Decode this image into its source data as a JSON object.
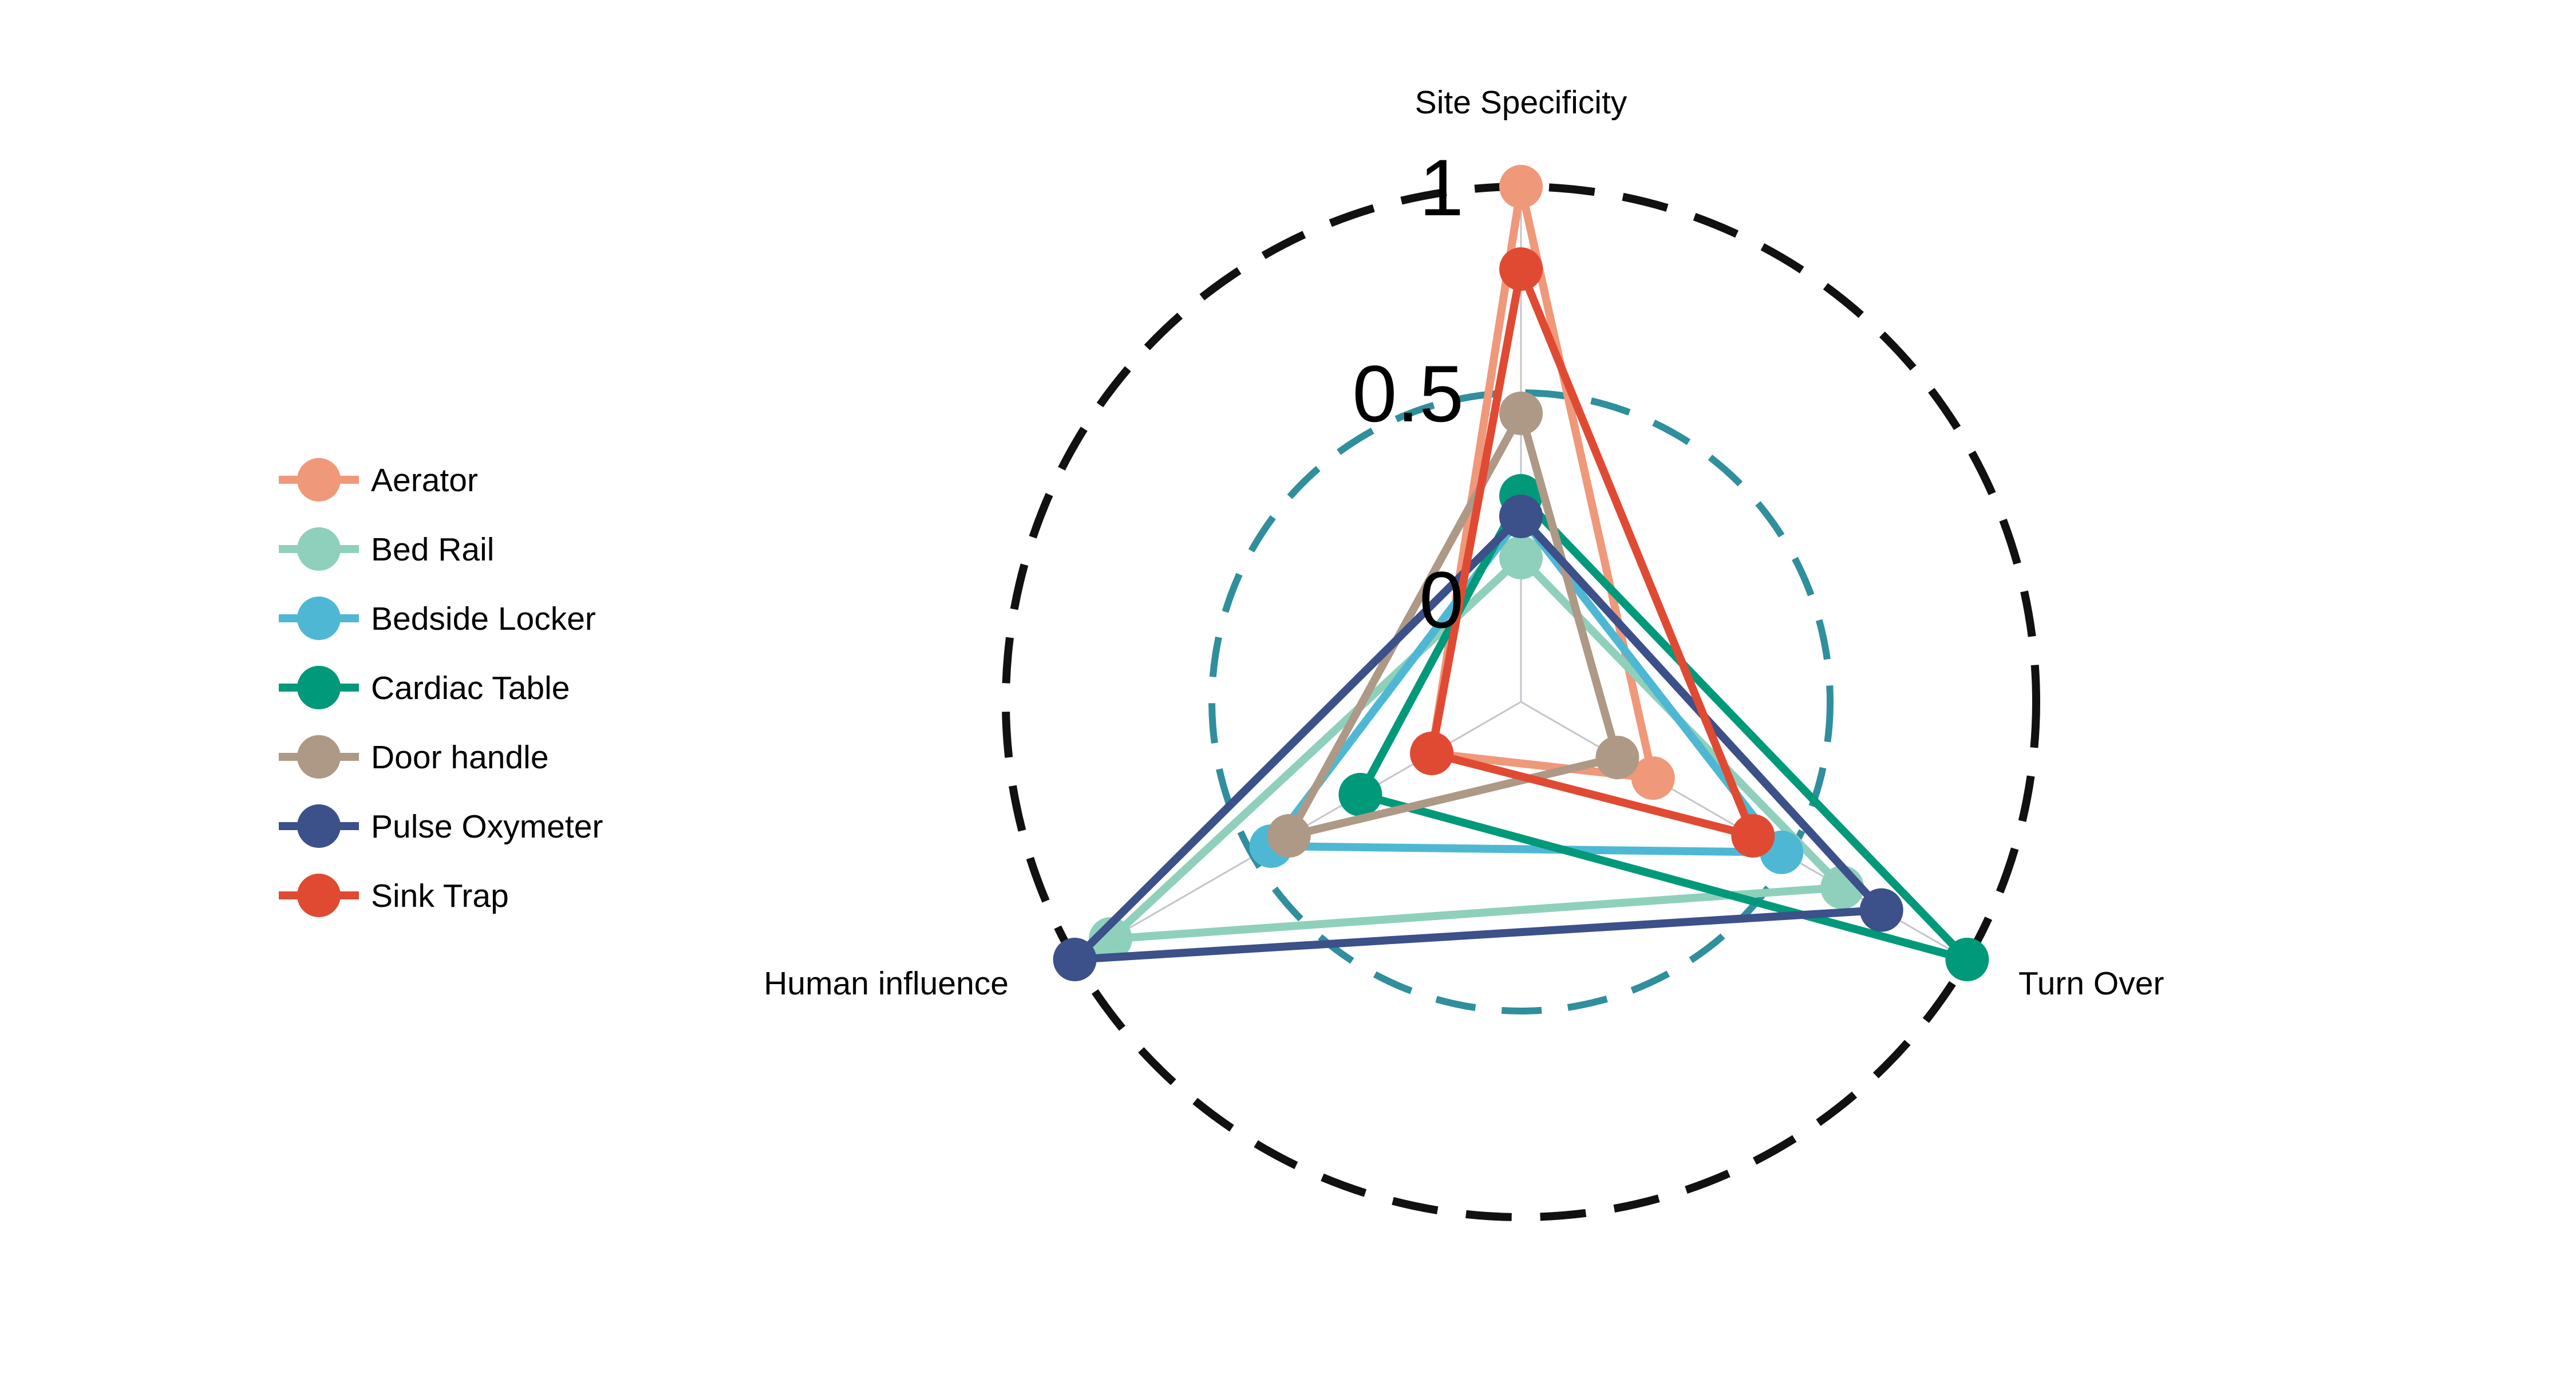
{
  "chart_data": {
    "type": "radar",
    "axes": [
      "Site Specificity",
      "Turn Over",
      "Human influence"
    ],
    "rings": [
      {
        "value": 0,
        "label": "0"
      },
      {
        "value": 0.5,
        "label": "0.5",
        "color": "#2f8f9d"
      },
      {
        "value": 1,
        "label": "1",
        "color": "#111111"
      }
    ],
    "rlim": [
      -0.25,
      1
    ],
    "legend_position": "left",
    "series": [
      {
        "name": "Aerator",
        "color": "#f0987a",
        "values": [
          1.0,
          0.12,
          0.0
        ]
      },
      {
        "name": "Bed Rail",
        "color": "#8fd0bc",
        "values": [
          0.1,
          0.65,
          0.9
        ]
      },
      {
        "name": "Bedside Locker",
        "color": "#4eb8d4",
        "values": [
          0.2,
          0.48,
          0.45
        ]
      },
      {
        "name": "Cardiac Table",
        "color": "#00997a",
        "values": [
          0.25,
          1.0,
          0.2
        ]
      },
      {
        "name": "Door handle",
        "color": "#ad9986",
        "values": [
          0.45,
          0.02,
          0.4
        ]
      },
      {
        "name": "Pulse Oxymeter",
        "color": "#3c5089",
        "values": [
          0.2,
          0.76,
          1.0
        ]
      },
      {
        "name": "Sink Trap",
        "color": "#e04a33",
        "values": [
          0.8,
          0.4,
          0.0
        ]
      }
    ]
  }
}
